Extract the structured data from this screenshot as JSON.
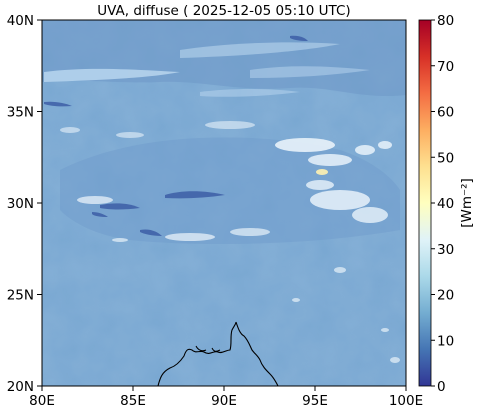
{
  "title": "UVA, diffuse ( 2025-12-05 05:10 UTC)",
  "map": {
    "lat_labels": [
      "40N",
      "35N",
      "30N",
      "25N",
      "20N"
    ],
    "lon_labels": [
      "80E",
      "85E",
      "90E",
      "95E",
      "100E"
    ],
    "extent": {
      "lon_min": 80,
      "lon_max": 100,
      "lat_min": 20,
      "lat_max": 40
    },
    "background_color": "#7aa6d0"
  },
  "colorbar": {
    "label": "[Wm⁻²]",
    "ticks": [
      "0",
      "10",
      "20",
      "30",
      "40",
      "50",
      "60",
      "70",
      "80"
    ],
    "min": 0,
    "max": 80,
    "colormap": "RdYlBu_r",
    "colors": [
      "#313695",
      "#4575b4",
      "#74add1",
      "#abd9e9",
      "#e0f3f8",
      "#ffffbf",
      "#fee090",
      "#fdae61",
      "#f46d43",
      "#d73027",
      "#a50026"
    ]
  }
}
